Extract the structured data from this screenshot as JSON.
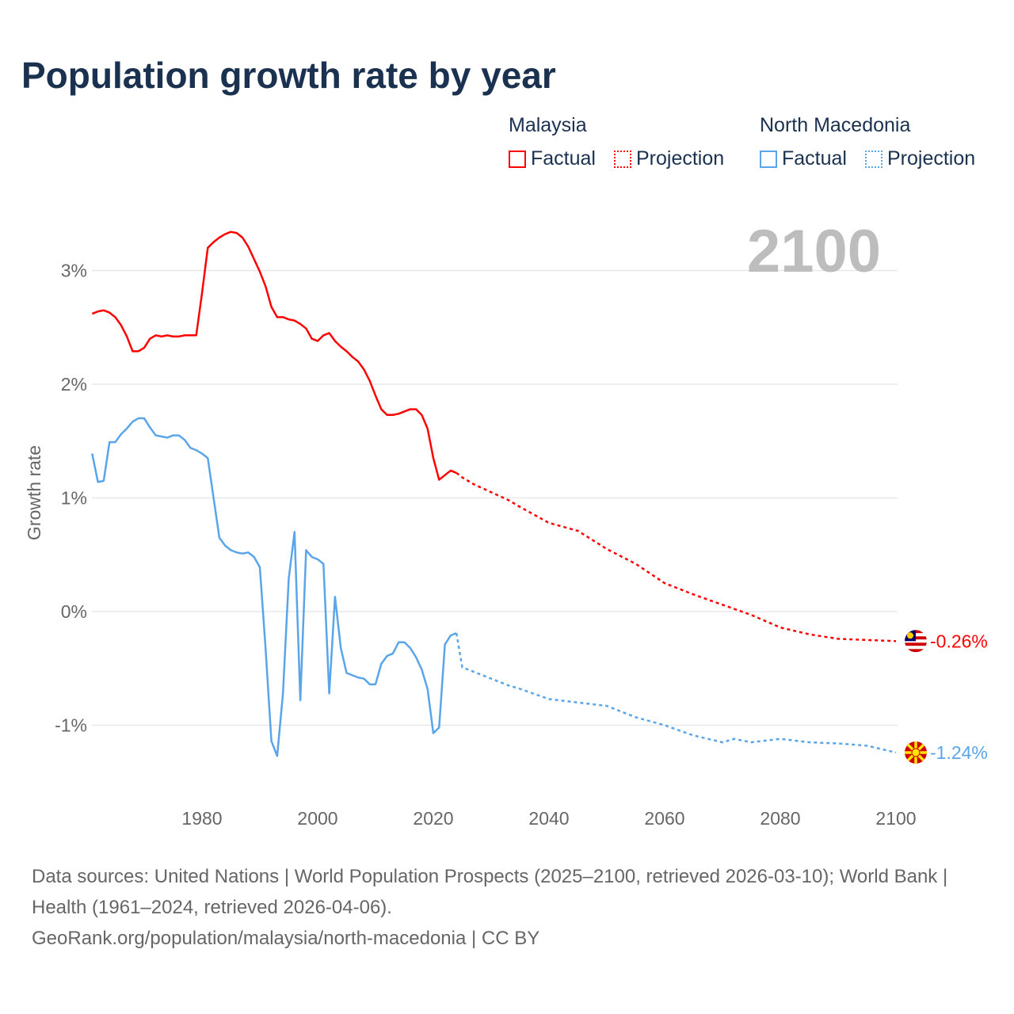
{
  "title": "Population growth rate by year",
  "legend": {
    "groups": [
      {
        "name": "Malaysia",
        "factual": "Factual",
        "projection": "Projection",
        "color": "#ff0000"
      },
      {
        "name": "North Macedonia",
        "factual": "Factual",
        "projection": "Projection",
        "color": "#5aa5ea"
      }
    ]
  },
  "year_display": "2100",
  "footer": {
    "sources": "Data sources: United Nations | World Population Prospects (2025–2100, retrieved 2026-03-10); World Bank | Health (1961–2024, retrieved 2026-04-06).",
    "link": "GeoRank.org/population/malaysia/north-macedonia | CC BY"
  },
  "chart_data": {
    "type": "line",
    "title": "Population growth rate by year",
    "xlabel": "",
    "ylabel": "Growth rate",
    "xlim": [
      1961,
      2100
    ],
    "ylim": [
      -1.5,
      3.5
    ],
    "xticks": [
      "1980",
      "2000",
      "2020",
      "2040",
      "2060",
      "2080",
      "2100"
    ],
    "xtick_values": [
      1980,
      2000,
      2020,
      2040,
      2060,
      2080,
      2100
    ],
    "yticks": [
      "3%",
      "2%",
      "1%",
      "0%",
      "-1%"
    ],
    "ytick_values": [
      3,
      2,
      1,
      0,
      -1
    ],
    "grid": true,
    "legend_position": "top-right",
    "series": [
      {
        "name": "Malaysia",
        "color": "#ff0000",
        "end_label": "-0.26%",
        "factual": {
          "x": [
            1961,
            1962,
            1963,
            1964,
            1965,
            1966,
            1967,
            1968,
            1969,
            1970,
            1971,
            1972,
            1973,
            1974,
            1975,
            1976,
            1977,
            1978,
            1979,
            1980,
            1981,
            1982,
            1983,
            1984,
            1985,
            1986,
            1987,
            1988,
            1989,
            1990,
            1991,
            1992,
            1993,
            1994,
            1995,
            1996,
            1997,
            1998,
            1999,
            2000,
            2001,
            2002,
            2003,
            2004,
            2005,
            2006,
            2007,
            2008,
            2009,
            2010,
            2011,
            2012,
            2013,
            2014,
            2015,
            2016,
            2017,
            2018,
            2019,
            2020,
            2021,
            2022,
            2023,
            2024
          ],
          "y": [
            2.62,
            2.64,
            2.65,
            2.63,
            2.59,
            2.52,
            2.42,
            2.29,
            2.29,
            2.32,
            2.4,
            2.43,
            2.42,
            2.43,
            2.42,
            2.42,
            2.43,
            2.43,
            2.43,
            2.8,
            3.2,
            3.25,
            3.29,
            3.32,
            3.34,
            3.33,
            3.29,
            3.21,
            3.1,
            2.99,
            2.86,
            2.68,
            2.59,
            2.59,
            2.57,
            2.56,
            2.53,
            2.49,
            2.4,
            2.38,
            2.43,
            2.45,
            2.38,
            2.33,
            2.29,
            2.24,
            2.2,
            2.13,
            2.03,
            1.9,
            1.78,
            1.73,
            1.73,
            1.74,
            1.76,
            1.78,
            1.78,
            1.73,
            1.61,
            1.35,
            1.16,
            1.2,
            1.24,
            1.22
          ]
        },
        "projection": {
          "x": [
            2024,
            2025,
            2027,
            2030,
            2033,
            2035,
            2040,
            2045,
            2050,
            2055,
            2060,
            2065,
            2070,
            2075,
            2080,
            2085,
            2090,
            2095,
            2100
          ],
          "y": [
            1.22,
            1.18,
            1.12,
            1.05,
            0.98,
            0.92,
            0.78,
            0.71,
            0.55,
            0.42,
            0.25,
            0.15,
            0.06,
            -0.03,
            -0.14,
            -0.2,
            -0.24,
            -0.25,
            -0.26
          ]
        }
      },
      {
        "name": "North Macedonia",
        "color": "#5aa5ea",
        "end_label": "-1.24%",
        "factual": {
          "x": [
            1961,
            1962,
            1963,
            1964,
            1965,
            1966,
            1967,
            1968,
            1969,
            1970,
            1971,
            1972,
            1973,
            1974,
            1975,
            1976,
            1977,
            1978,
            1979,
            1980,
            1981,
            1982,
            1983,
            1984,
            1985,
            1986,
            1987,
            1988,
            1989,
            1990,
            1991,
            1992,
            1993,
            1994,
            1995,
            1996,
            1997,
            1998,
            1999,
            2000,
            2001,
            2002,
            2003,
            2004,
            2005,
            2006,
            2007,
            2008,
            2009,
            2010,
            2011,
            2012,
            2013,
            2014,
            2015,
            2016,
            2017,
            2018,
            2019,
            2020,
            2021,
            2022,
            2023,
            2024
          ],
          "y": [
            1.39,
            1.14,
            1.15,
            1.49,
            1.49,
            1.56,
            1.61,
            1.67,
            1.7,
            1.7,
            1.62,
            1.55,
            1.54,
            1.53,
            1.55,
            1.55,
            1.51,
            1.44,
            1.42,
            1.39,
            1.35,
            1.0,
            0.65,
            0.58,
            0.54,
            0.52,
            0.51,
            0.52,
            0.48,
            0.39,
            -0.33,
            -1.14,
            -1.27,
            -0.72,
            0.29,
            0.7,
            -0.78,
            0.54,
            0.48,
            0.46,
            0.42,
            -0.72,
            0.13,
            -0.32,
            -0.54,
            -0.56,
            -0.58,
            -0.59,
            -0.64,
            -0.64,
            -0.46,
            -0.39,
            -0.37,
            -0.27,
            -0.27,
            -0.32,
            -0.4,
            -0.51,
            -0.68,
            -1.07,
            -1.02,
            -0.29,
            -0.21,
            -0.19
          ]
        },
        "projection": {
          "x": [
            2024,
            2025,
            2027,
            2030,
            2033,
            2035,
            2040,
            2045,
            2050,
            2055,
            2060,
            2065,
            2070,
            2072,
            2075,
            2080,
            2085,
            2090,
            2095,
            2100
          ],
          "y": [
            -0.19,
            -0.49,
            -0.53,
            -0.59,
            -0.65,
            -0.68,
            -0.77,
            -0.8,
            -0.83,
            -0.93,
            -1.0,
            -1.09,
            -1.15,
            -1.12,
            -1.15,
            -1.12,
            -1.15,
            -1.16,
            -1.18,
            -1.24
          ]
        }
      }
    ]
  }
}
